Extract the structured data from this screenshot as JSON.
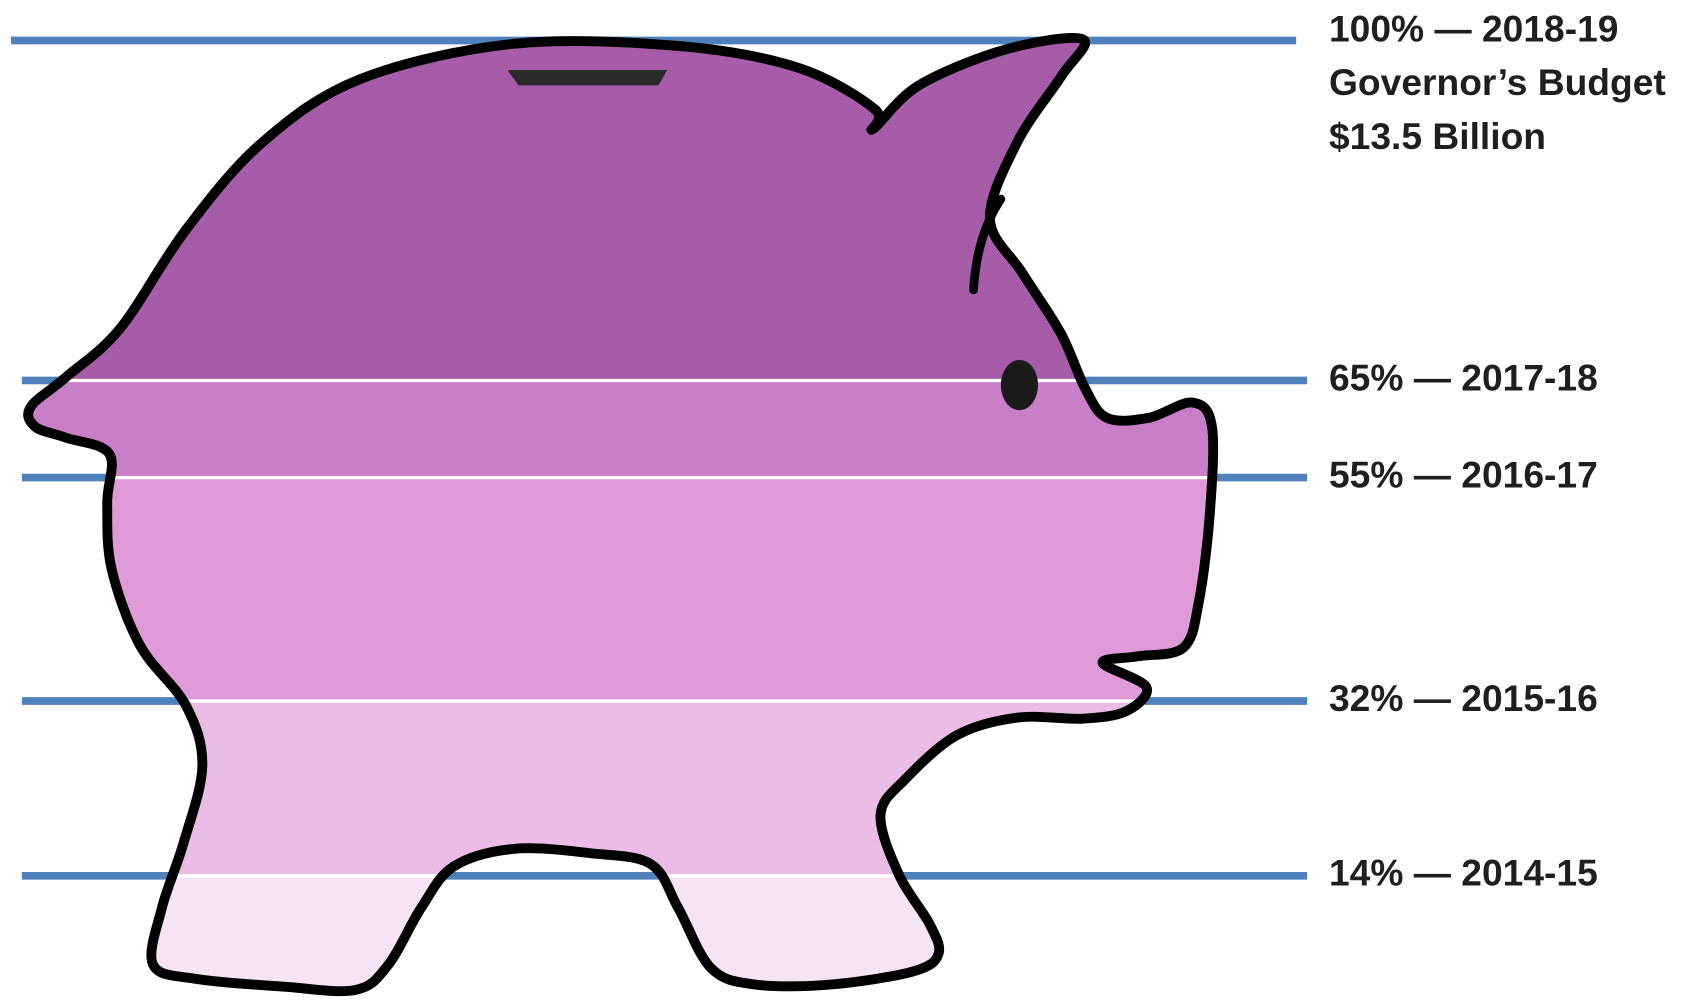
{
  "chart_data": {
    "type": "pictorial",
    "values": [
      100,
      65,
      55,
      32,
      14
    ],
    "value_labels": [
      "100% — 2018-19",
      "65% — 2017-18",
      "55% — 2016-17",
      "32% — 2015-16",
      "14% — 2014-15"
    ],
    "annotations": [
      "Governor’s Budget",
      "$13.5 Billion"
    ],
    "ylim": [
      0,
      100
    ],
    "colors": [
      "#a65ca8",
      "#c97fc7",
      "#e09ad8",
      "#ebbde6",
      "#f6e3f4"
    ],
    "line_color": "#4f81bd"
  }
}
